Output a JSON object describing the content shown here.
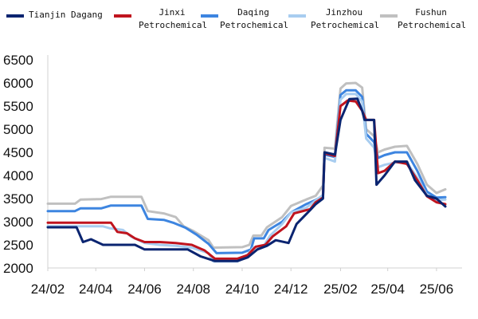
{
  "chart_data": {
    "type": "line",
    "title": "",
    "xlabel": "",
    "ylabel": "",
    "legend_position": "top",
    "grid": false,
    "ylim": [
      2000,
      6500
    ],
    "yticks": [
      2000,
      2500,
      3000,
      3500,
      4000,
      4500,
      5000,
      5500,
      6000,
      6500
    ],
    "xlim": [
      "2024-02-01",
      "2025-06-20"
    ],
    "xticks": [
      {
        "date": "2024-02-01",
        "label": "24/02"
      },
      {
        "date": "2024-04-01",
        "label": "24/04"
      },
      {
        "date": "2024-06-01",
        "label": "24/06"
      },
      {
        "date": "2024-08-01",
        "label": "24/08"
      },
      {
        "date": "2024-10-01",
        "label": "24/10"
      },
      {
        "date": "2024-12-01",
        "label": "24/12"
      },
      {
        "date": "2025-02-01",
        "label": "25/02"
      },
      {
        "date": "2025-04-01",
        "label": "25/04"
      },
      {
        "date": "2025-06-01",
        "label": "25/06"
      }
    ],
    "series": [
      {
        "name": "Fushun Petrochemical",
        "legend_lines": [
          "Fushun",
          "Petrochemical"
        ],
        "color": "#c0c0c0",
        "points": [
          [
            "2024-02-01",
            3390
          ],
          [
            "2024-03-06",
            3390
          ],
          [
            "2024-03-13",
            3480
          ],
          [
            "2024-04-08",
            3490
          ],
          [
            "2024-04-20",
            3540
          ],
          [
            "2024-05-28",
            3540
          ],
          [
            "2024-06-05",
            3230
          ],
          [
            "2024-06-25",
            3180
          ],
          [
            "2024-07-10",
            3100
          ],
          [
            "2024-07-20",
            2900
          ],
          [
            "2024-08-01",
            2800
          ],
          [
            "2024-08-20",
            2600
          ],
          [
            "2024-08-26",
            2440
          ],
          [
            "2024-10-01",
            2450
          ],
          [
            "2024-10-10",
            2500
          ],
          [
            "2024-10-15",
            2700
          ],
          [
            "2024-10-25",
            2700
          ],
          [
            "2024-11-01",
            2880
          ],
          [
            "2024-11-20",
            3100
          ],
          [
            "2024-12-01",
            3340
          ],
          [
            "2024-12-20",
            3480
          ],
          [
            "2025-01-01",
            3560
          ],
          [
            "2025-01-10",
            3780
          ],
          [
            "2025-01-12",
            4600
          ],
          [
            "2025-01-25",
            4580
          ],
          [
            "2025-02-01",
            5880
          ],
          [
            "2025-02-08",
            5990
          ],
          [
            "2025-02-20",
            6000
          ],
          [
            "2025-02-28",
            5900
          ],
          [
            "2025-03-05",
            5000
          ],
          [
            "2025-03-15",
            4850
          ],
          [
            "2025-03-20",
            4500
          ],
          [
            "2025-03-28",
            4560
          ],
          [
            "2025-04-10",
            4620
          ],
          [
            "2025-04-25",
            4640
          ],
          [
            "2025-05-08",
            4250
          ],
          [
            "2025-05-20",
            3800
          ],
          [
            "2025-06-01",
            3620
          ],
          [
            "2025-06-12",
            3700
          ]
        ]
      },
      {
        "name": "Daqing Petrochemical",
        "legend_lines": [
          "Daqing",
          "Petrochemical"
        ],
        "color": "#3d85e0",
        "points": [
          [
            "2024-02-01",
            3230
          ],
          [
            "2024-03-06",
            3230
          ],
          [
            "2024-03-13",
            3290
          ],
          [
            "2024-04-08",
            3290
          ],
          [
            "2024-04-20",
            3350
          ],
          [
            "2024-05-28",
            3350
          ],
          [
            "2024-06-05",
            3060
          ],
          [
            "2024-06-25",
            3040
          ],
          [
            "2024-07-08",
            2970
          ],
          [
            "2024-07-22",
            2870
          ],
          [
            "2024-08-05",
            2720
          ],
          [
            "2024-08-20",
            2520
          ],
          [
            "2024-08-30",
            2320
          ],
          [
            "2024-10-01",
            2330
          ],
          [
            "2024-10-12",
            2400
          ],
          [
            "2024-10-16",
            2640
          ],
          [
            "2024-10-28",
            2640
          ],
          [
            "2024-11-03",
            2820
          ],
          [
            "2024-11-20",
            3000
          ],
          [
            "2024-12-01",
            3200
          ],
          [
            "2024-12-20",
            3380
          ],
          [
            "2025-01-01",
            3470
          ],
          [
            "2025-01-10",
            3560
          ],
          [
            "2025-01-12",
            4450
          ],
          [
            "2025-01-25",
            4400
          ],
          [
            "2025-02-01",
            5740
          ],
          [
            "2025-02-08",
            5840
          ],
          [
            "2025-02-20",
            5840
          ],
          [
            "2025-02-28",
            5700
          ],
          [
            "2025-03-05",
            4900
          ],
          [
            "2025-03-15",
            4720
          ],
          [
            "2025-03-20",
            4380
          ],
          [
            "2025-03-28",
            4440
          ],
          [
            "2025-04-10",
            4500
          ],
          [
            "2025-04-25",
            4500
          ],
          [
            "2025-05-08",
            4100
          ],
          [
            "2025-05-20",
            3650
          ],
          [
            "2025-06-01",
            3520
          ],
          [
            "2025-06-12",
            3530
          ]
        ]
      },
      {
        "name": "Jinzhou Petrochemical",
        "legend_lines": [
          "Jinzhou",
          "Petrochemical"
        ],
        "color": "#a8cdf0",
        "points": [
          [
            "2024-02-01",
            2900
          ],
          [
            "2024-04-10",
            2900
          ],
          [
            "2024-04-18",
            2860
          ],
          [
            "2024-05-05",
            2820
          ],
          [
            "2024-05-15",
            2680
          ],
          [
            "2024-06-01",
            2540
          ],
          [
            "2024-06-20",
            2500
          ],
          [
            "2024-07-10",
            2480
          ],
          [
            "2024-07-30",
            2440
          ],
          [
            "2024-08-20",
            2320
          ],
          [
            "2024-08-26",
            2140
          ],
          [
            "2024-09-25",
            2140
          ],
          [
            "2024-10-05",
            2230
          ],
          [
            "2024-10-15",
            2440
          ],
          [
            "2024-10-28",
            2480
          ],
          [
            "2024-11-05",
            2700
          ],
          [
            "2024-11-20",
            2950
          ],
          [
            "2024-12-01",
            3200
          ],
          [
            "2024-12-20",
            3300
          ],
          [
            "2025-01-01",
            3460
          ],
          [
            "2025-01-10",
            3580
          ],
          [
            "2025-01-12",
            4380
          ],
          [
            "2025-01-25",
            4300
          ],
          [
            "2025-02-01",
            5640
          ],
          [
            "2025-02-08",
            5760
          ],
          [
            "2025-02-20",
            5760
          ],
          [
            "2025-02-28",
            5600
          ],
          [
            "2025-03-05",
            4800
          ],
          [
            "2025-03-15",
            4600
          ],
          [
            "2025-03-20",
            4180
          ],
          [
            "2025-03-28",
            4230
          ],
          [
            "2025-04-10",
            4280
          ],
          [
            "2025-04-25",
            4280
          ],
          [
            "2025-05-08",
            3950
          ],
          [
            "2025-05-20",
            3570
          ],
          [
            "2025-06-01",
            3470
          ],
          [
            "2025-06-12",
            3480
          ]
        ]
      },
      {
        "name": "Jinxi Petrochemical",
        "legend_lines": [
          "Jinxi",
          "Petrochemical"
        ],
        "color": "#c0141e",
        "points": [
          [
            "2024-02-01",
            2980
          ],
          [
            "2024-04-20",
            2980
          ],
          [
            "2024-04-28",
            2780
          ],
          [
            "2024-05-10",
            2750
          ],
          [
            "2024-05-20",
            2640
          ],
          [
            "2024-06-01",
            2560
          ],
          [
            "2024-06-20",
            2560
          ],
          [
            "2024-07-10",
            2540
          ],
          [
            "2024-07-30",
            2500
          ],
          [
            "2024-08-15",
            2380
          ],
          [
            "2024-08-28",
            2200
          ],
          [
            "2024-09-25",
            2200
          ],
          [
            "2024-10-08",
            2280
          ],
          [
            "2024-10-18",
            2460
          ],
          [
            "2024-10-30",
            2500
          ],
          [
            "2024-11-08",
            2680
          ],
          [
            "2024-11-25",
            2900
          ],
          [
            "2024-12-05",
            3180
          ],
          [
            "2024-12-25",
            3270
          ],
          [
            "2025-01-01",
            3420
          ],
          [
            "2025-01-10",
            3520
          ],
          [
            "2025-01-12",
            4480
          ],
          [
            "2025-01-25",
            4420
          ],
          [
            "2025-02-01",
            5500
          ],
          [
            "2025-02-10",
            5620
          ],
          [
            "2025-02-20",
            5600
          ],
          [
            "2025-02-28",
            5400
          ],
          [
            "2025-03-05",
            5200
          ],
          [
            "2025-03-15",
            5200
          ],
          [
            "2025-03-20",
            4050
          ],
          [
            "2025-03-28",
            4100
          ],
          [
            "2025-04-10",
            4300
          ],
          [
            "2025-04-25",
            4250
          ],
          [
            "2025-05-08",
            3900
          ],
          [
            "2025-05-20",
            3550
          ],
          [
            "2025-06-01",
            3420
          ],
          [
            "2025-06-12",
            3380
          ]
        ]
      },
      {
        "name": "Tianjin Dagang",
        "legend_lines": [
          "Tianjin Dagang"
        ],
        "color": "#0a2470",
        "points": [
          [
            "2024-02-01",
            2880
          ],
          [
            "2024-03-08",
            2880
          ],
          [
            "2024-03-16",
            2560
          ],
          [
            "2024-03-26",
            2620
          ],
          [
            "2024-04-10",
            2500
          ],
          [
            "2024-05-20",
            2500
          ],
          [
            "2024-06-01",
            2400
          ],
          [
            "2024-07-25",
            2400
          ],
          [
            "2024-08-10",
            2250
          ],
          [
            "2024-08-28",
            2150
          ],
          [
            "2024-09-25",
            2150
          ],
          [
            "2024-10-08",
            2230
          ],
          [
            "2024-10-20",
            2400
          ],
          [
            "2024-11-01",
            2480
          ],
          [
            "2024-11-12",
            2600
          ],
          [
            "2024-11-28",
            2540
          ],
          [
            "2024-12-08",
            2950
          ],
          [
            "2024-12-25",
            3250
          ],
          [
            "2025-01-01",
            3380
          ],
          [
            "2025-01-10",
            3500
          ],
          [
            "2025-01-12",
            4500
          ],
          [
            "2025-01-25",
            4450
          ],
          [
            "2025-02-01",
            5200
          ],
          [
            "2025-02-12",
            5650
          ],
          [
            "2025-02-22",
            5660
          ],
          [
            "2025-02-28",
            5400
          ],
          [
            "2025-03-03",
            5200
          ],
          [
            "2025-03-15",
            5200
          ],
          [
            "2025-03-18",
            3800
          ],
          [
            "2025-03-28",
            4000
          ],
          [
            "2025-04-10",
            4300
          ],
          [
            "2025-04-25",
            4300
          ],
          [
            "2025-05-05",
            3900
          ],
          [
            "2025-05-20",
            3560
          ],
          [
            "2025-06-01",
            3500
          ],
          [
            "2025-06-12",
            3330
          ]
        ]
      }
    ],
    "legend_order": [
      "Tianjin Dagang",
      "Jinxi Petrochemical",
      "Daqing Petrochemical",
      "Jinzhou Petrochemical",
      "Fushun Petrochemical"
    ]
  }
}
